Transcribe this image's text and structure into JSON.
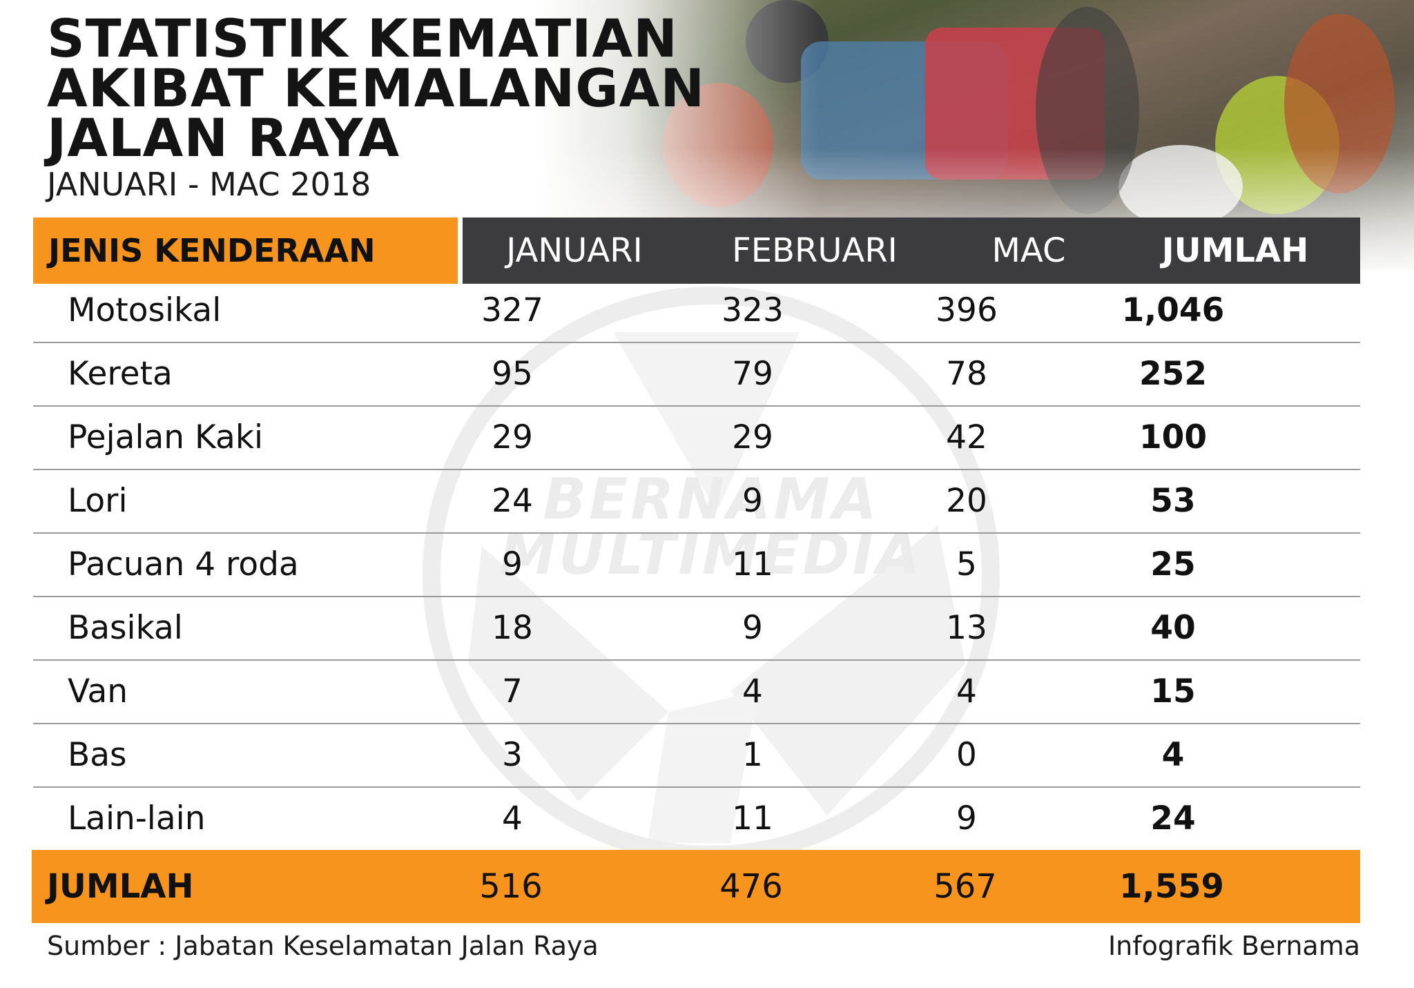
{
  "title_lines": [
    "STATISTIK KEMATIAN",
    "AKIBAT KEMALANGAN",
    "JALAN RAYA"
  ],
  "subtitle": "JANUARI - MAC 2018",
  "watermark": [
    "BERNAMA",
    "MULTIMEDIA"
  ],
  "chart_data": {
    "type": "table",
    "title": "STATISTIK KEMATIAN AKIBAT KEMALANGAN JALAN RAYA",
    "subtitle": "JANUARI - MAC 2018",
    "columns": [
      "JENIS KENDERAAN",
      "JANUARI",
      "FEBRUARI",
      "MAC",
      "JUMLAH"
    ],
    "rows": [
      {
        "label": "Motosikal",
        "values": [
          "327",
          "323",
          "396",
          "1,046"
        ]
      },
      {
        "label": "Kereta",
        "values": [
          "95",
          "79",
          "78",
          "252"
        ]
      },
      {
        "label": "Pejalan Kaki",
        "values": [
          "29",
          "29",
          "42",
          "100"
        ]
      },
      {
        "label": "Lori",
        "values": [
          "24",
          "9",
          "20",
          "53"
        ]
      },
      {
        "label": "Pacuan 4 roda",
        "values": [
          "9",
          "11",
          "5",
          "25"
        ]
      },
      {
        "label": "Basikal",
        "values": [
          "18",
          "9",
          "13",
          "40"
        ]
      },
      {
        "label": "Van",
        "values": [
          "7",
          "4",
          "4",
          "15"
        ]
      },
      {
        "label": "Bas",
        "values": [
          "3",
          "1",
          "0",
          "4"
        ]
      },
      {
        "label": "Lain-lain",
        "values": [
          "4",
          "11",
          "9",
          "24"
        ]
      }
    ],
    "total": {
      "label": "JUMLAH",
      "values": [
        "516",
        "476",
        "567",
        "1,559"
      ]
    }
  },
  "footer": {
    "source": "Sumber : Jabatan Keselamatan Jalan Raya",
    "credit": "Infografik Bernama"
  },
  "colors": {
    "accent": "#f6941d",
    "header_dark": "#3c3c3e",
    "divider": "#9a9a9a"
  }
}
